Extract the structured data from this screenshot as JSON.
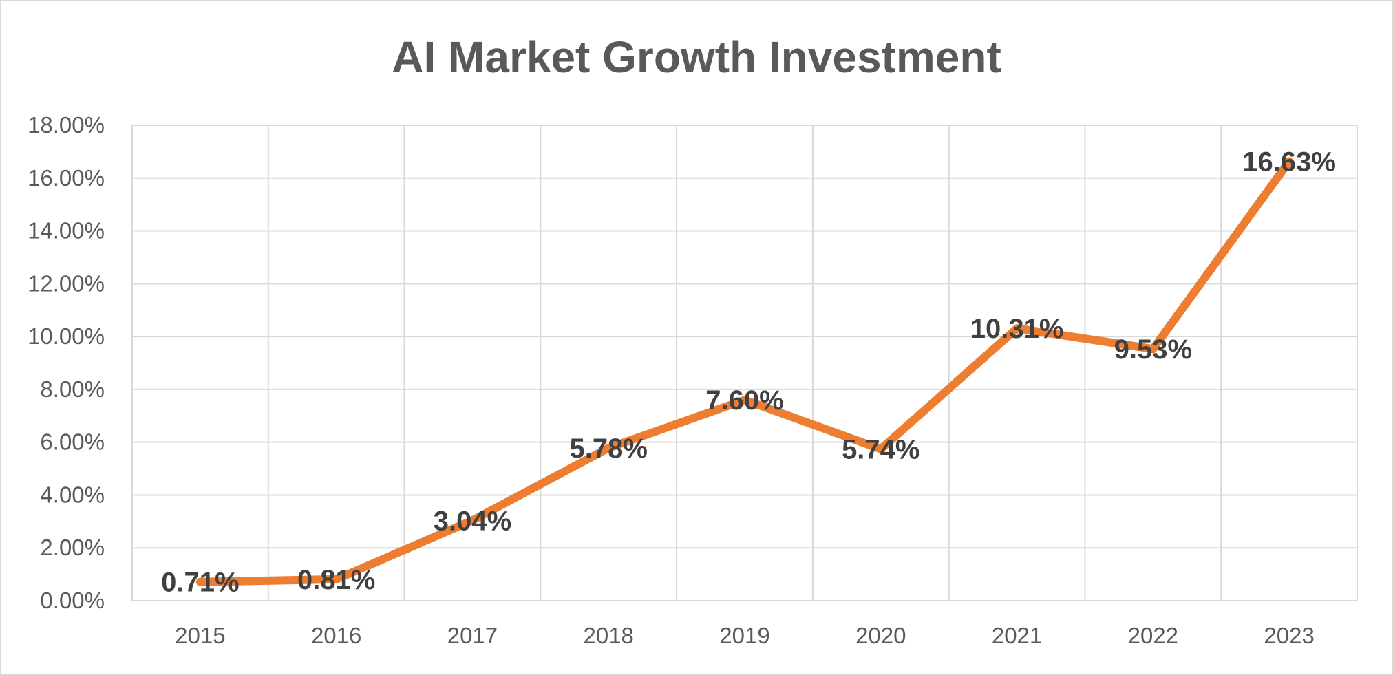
{
  "chart_data": {
    "type": "line",
    "title": "AI Market Growth Investment",
    "categories": [
      "2015",
      "2016",
      "2017",
      "2018",
      "2019",
      "2020",
      "2021",
      "2022",
      "2023"
    ],
    "series": [
      {
        "values": [
          0.71,
          0.81,
          3.04,
          5.78,
          7.6,
          5.74,
          10.31,
          9.53,
          16.63
        ],
        "data_labels": [
          "0.71%",
          "0.81%",
          "3.04%",
          "5.78%",
          "7.60%",
          "5.74%",
          "10.31%",
          "9.53%",
          "16.63%"
        ],
        "color": "#ED7D31"
      }
    ],
    "y_ticks": [
      "0.00%",
      "2.00%",
      "4.00%",
      "6.00%",
      "8.00%",
      "10.00%",
      "12.00%",
      "14.00%",
      "16.00%",
      "18.00%"
    ],
    "ylim": [
      0,
      18
    ],
    "grid": true,
    "legend": "none",
    "colors": {
      "line": "#ED7D31",
      "grid": "#d9d9d9",
      "title": "#595959",
      "tick_text": "#595959",
      "data_label_text": "#404040"
    }
  }
}
